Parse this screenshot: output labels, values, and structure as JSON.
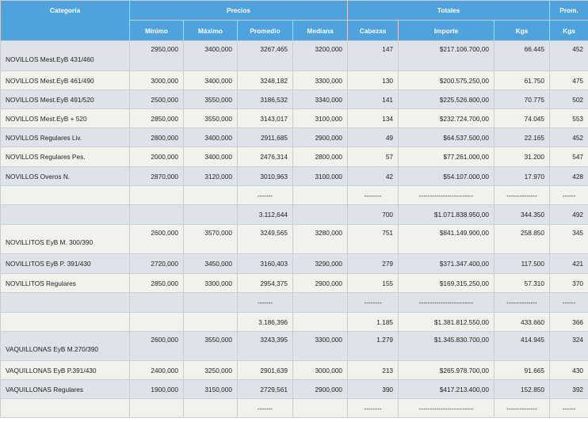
{
  "header": {
    "groups": [
      "Categoría",
      "Precios",
      "Totales",
      "Prom."
    ],
    "columns": [
      "Mínimo",
      "Máximo",
      "Promedio",
      "Mediana",
      "Cabezas",
      "Importe",
      "Kgs",
      "Kgs"
    ]
  },
  "rows": [
    {
      "cat": "NOVILLOS Mest.EyB 431/460",
      "min": "2950,000",
      "max": "3400,000",
      "prom": "3267,465",
      "med": "3200,000",
      "cab": "147",
      "imp": "$217.106.700,00",
      "kgs": "66.445",
      "pkg": "452"
    },
    {
      "cat": "NOVILLOS Mest.EyB 461/490",
      "min": "3000,000",
      "max": "3400,000",
      "prom": "3248,182",
      "med": "3300,000",
      "cab": "130",
      "imp": "$200.575.250,00",
      "kgs": "61.750",
      "pkg": "475"
    },
    {
      "cat": "NOVILLOS Mest.EyB 491/520",
      "min": "2500,000",
      "max": "3550,000",
      "prom": "3186,532",
      "med": "3340,000",
      "cab": "141",
      "imp": "$225.526.800,00",
      "kgs": "70.775",
      "pkg": "502"
    },
    {
      "cat": "NOVILLOS Mest.EyB + 520",
      "min": "2850,000",
      "max": "3550,000",
      "prom": "3143,017",
      "med": "3100,000",
      "cab": "134",
      "imp": "$232.724.700,00",
      "kgs": "74.045",
      "pkg": "553"
    },
    {
      "cat": "NOVILLOS Regulares Liv.",
      "min": "2800,000",
      "max": "3400,000",
      "prom": "2911,685",
      "med": "2900,000",
      "cab": "49",
      "imp": "$64.537.500,00",
      "kgs": "22.165",
      "pkg": "452"
    },
    {
      "cat": "NOVILLOS Regulares Pes.",
      "min": "2000,000",
      "max": "3400,000",
      "prom": "2476,314",
      "med": "2800,000",
      "cab": "57",
      "imp": "$77.261.000,00",
      "kgs": "31.200",
      "pkg": "547"
    },
    {
      "cat": "NOVILLOS Overos N.",
      "min": "2870,000",
      "max": "3120,000",
      "prom": "3010,963",
      "med": "3100,000",
      "cab": "42",
      "imp": "$54.107.000,00",
      "kgs": "17.970",
      "pkg": "428"
    },
    {
      "cat": "",
      "min": "",
      "max": "",
      "prom": "-------",
      "med": "",
      "cab": "--------",
      "imp": "-------------------------",
      "kgs": "--------------",
      "pkg": "------"
    },
    {
      "cat": "",
      "min": "",
      "max": "",
      "prom": "3.112,644",
      "med": "",
      "cab": "700",
      "imp": "$1.071.838.950,00",
      "kgs": "344.350",
      "pkg": "492"
    },
    {
      "cat": "NOVILLITOS EyB M. 300/390",
      "min": "2600,000",
      "max": "3570,000",
      "prom": "3249,565",
      "med": "3280,000",
      "cab": "751",
      "imp": "$841.149.900,00",
      "kgs": "258.850",
      "pkg": "345"
    },
    {
      "cat": "NOVILLITOS EyB P. 391/430",
      "min": "2720,000",
      "max": "3450,000",
      "prom": "3160,403",
      "med": "3290,000",
      "cab": "279",
      "imp": "$371.347.400,00",
      "kgs": "117.500",
      "pkg": "421"
    },
    {
      "cat": "NOVILLITOS Regulares",
      "min": "2850,000",
      "max": "3300,000",
      "prom": "2954,375",
      "med": "2900,000",
      "cab": "155",
      "imp": "$169.315.250,00",
      "kgs": "57.310",
      "pkg": "370"
    },
    {
      "cat": "",
      "min": "",
      "max": "",
      "prom": "-------",
      "med": "",
      "cab": "--------",
      "imp": "-------------------------",
      "kgs": "--------------",
      "pkg": "------"
    },
    {
      "cat": "",
      "min": "",
      "max": "",
      "prom": "3.186,396",
      "med": "",
      "cab": "1.185",
      "imp": "$1.381.812.550,00",
      "kgs": "433.660",
      "pkg": "366"
    },
    {
      "cat": "VAQUILLONAS EyB M.270/390",
      "min": "2600,000",
      "max": "3550,000",
      "prom": "3243,395",
      "med": "3300,000",
      "cab": "1.279",
      "imp": "$1.345.830.700,00",
      "kgs": "414.945",
      "pkg": "324"
    },
    {
      "cat": "VAQUILLONAS EyB P.391/430",
      "min": "2400,000",
      "max": "3250,000",
      "prom": "2901,639",
      "med": "3000,000",
      "cab": "213",
      "imp": "$265.978.700,00",
      "kgs": "91.665",
      "pkg": "430"
    },
    {
      "cat": "VAQUILLONAS Regulares",
      "min": "1900,000",
      "max": "3150,000",
      "prom": "2729,561",
      "med": "2900,000",
      "cab": "390",
      "imp": "$417.213.400,00",
      "kgs": "152.850",
      "pkg": "392"
    },
    {
      "cat": "",
      "min": "",
      "max": "",
      "prom": "-------",
      "med": "",
      "cab": "--------",
      "imp": "-------------------------",
      "kgs": "--------------",
      "pkg": "------"
    }
  ]
}
